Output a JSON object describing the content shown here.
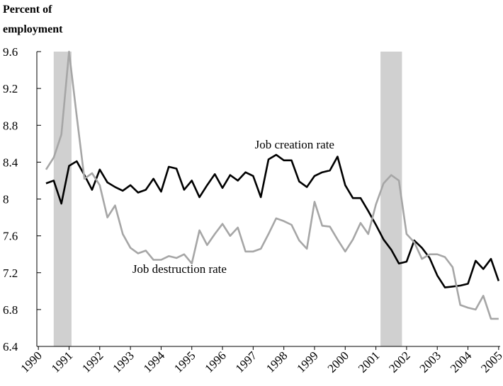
{
  "chart_data": {
    "type": "line",
    "y_label": [
      "Percent of",
      "employment"
    ],
    "x": [
      1990.25,
      1990.5,
      1990.75,
      1991,
      1991.25,
      1991.5,
      1991.75,
      1992,
      1992.25,
      1992.5,
      1992.75,
      1993,
      1993.25,
      1993.5,
      1993.75,
      1994,
      1994.25,
      1994.5,
      1994.75,
      1995,
      1995.25,
      1995.5,
      1995.75,
      1996,
      1996.25,
      1996.5,
      1996.75,
      1997,
      1997.25,
      1997.5,
      1997.75,
      1998,
      1998.25,
      1998.5,
      1998.75,
      1999,
      1999.25,
      1999.5,
      1999.75,
      2000,
      2000.25,
      2000.5,
      2000.75,
      2001,
      2001.25,
      2001.5,
      2001.75,
      2002,
      2002.25,
      2002.5,
      2002.75,
      2003,
      2003.25,
      2003.5,
      2003.75,
      2004,
      2004.25,
      2004.5,
      2004.75,
      2005
    ],
    "series": [
      {
        "name": "Job creation rate",
        "color": "#000000",
        "values": [
          8.17,
          8.2,
          7.95,
          8.36,
          8.41,
          8.26,
          8.1,
          8.32,
          8.18,
          8.13,
          8.09,
          8.15,
          8.07,
          8.1,
          8.22,
          8.08,
          8.35,
          8.33,
          8.1,
          8.2,
          8.02,
          8.15,
          8.27,
          8.12,
          8.26,
          8.2,
          8.29,
          8.25,
          8.02,
          8.43,
          8.48,
          8.42,
          8.42,
          8.19,
          8.13,
          8.25,
          8.29,
          8.31,
          8.46,
          8.15,
          8.01,
          8.01,
          7.87,
          7.72,
          7.56,
          7.45,
          7.3,
          7.32,
          7.55,
          7.47,
          7.36,
          7.17,
          7.04,
          7.05,
          7.06,
          7.08,
          7.33,
          7.24,
          7.35,
          7.11
        ],
        "label_at": [
          1998.35,
          8.55
        ]
      },
      {
        "name": "Job destruction rate",
        "color": "#a6a6a6",
        "values": [
          8.32,
          8.45,
          8.7,
          9.6,
          8.9,
          8.22,
          8.28,
          8.15,
          7.8,
          7.93,
          7.62,
          7.47,
          7.41,
          7.44,
          7.34,
          7.34,
          7.38,
          7.36,
          7.4,
          7.3,
          7.66,
          7.5,
          7.62,
          7.73,
          7.6,
          7.69,
          7.43,
          7.43,
          7.46,
          7.62,
          7.79,
          7.76,
          7.72,
          7.55,
          7.46,
          7.97,
          7.71,
          7.7,
          7.56,
          7.43,
          7.56,
          7.74,
          7.62,
          7.94,
          8.17,
          8.26,
          8.2,
          7.62,
          7.53,
          7.35,
          7.4,
          7.4,
          7.37,
          7.26,
          6.85,
          6.82,
          6.8,
          6.95,
          6.7,
          6.7
        ],
        "label_at": [
          1994.6,
          7.2
        ]
      }
    ],
    "shaded_periods": [
      [
        1990.5,
        1991.08
      ],
      [
        2001.15,
        2001.85
      ]
    ],
    "shade_color": "#d0d0d0",
    "xlim": [
      1989.95,
      2005.05
    ],
    "xticks": [
      1990,
      1991,
      1992,
      1993,
      1994,
      1995,
      1996,
      1997,
      1998,
      1999,
      2000,
      2001,
      2002,
      2003,
      2004,
      2005
    ],
    "ylim": [
      6.4,
      9.6
    ],
    "yticks": [
      6.4,
      6.8,
      7.2,
      7.6,
      8.0,
      8.4,
      8.8,
      9.2,
      9.6
    ]
  }
}
